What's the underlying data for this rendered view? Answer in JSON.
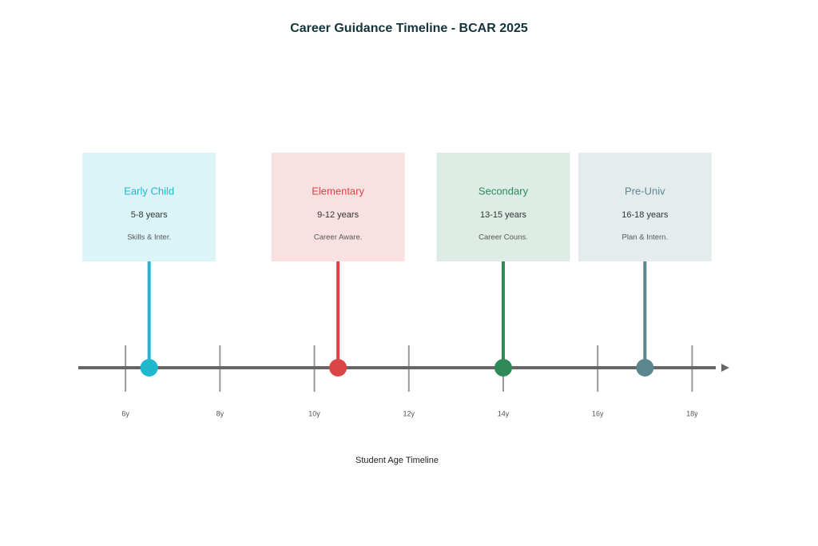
{
  "chart_data": {
    "type": "timeline",
    "title": "Career Guidance Timeline - BCAR 2025",
    "x_label": "Student Age Timeline",
    "xlim": [
      5,
      18.5
    ],
    "xticks": [
      {
        "value": 6,
        "label": "6y"
      },
      {
        "value": 8,
        "label": "8y"
      },
      {
        "value": 10,
        "label": "10y"
      },
      {
        "value": 12,
        "label": "12y"
      },
      {
        "value": 14,
        "label": "14y"
      },
      {
        "value": 16,
        "label": "16y"
      },
      {
        "value": 18,
        "label": "18y"
      }
    ],
    "events": [
      {
        "name": "Early Child",
        "period": "5-8 years",
        "note": "Skills & Inter.",
        "x": 6.5,
        "color": "#1fb8cd"
      },
      {
        "name": "Elementary",
        "period": "9-12 years",
        "note": "Career Aware.",
        "x": 10.5,
        "color": "#db4545"
      },
      {
        "name": "Secondary",
        "period": "13-15 years",
        "note": "Career Couns.",
        "x": 14,
        "color": "#2e8b57"
      },
      {
        "name": "Pre-Univ",
        "period": "16-18 years",
        "note": "Plan & Intern.",
        "x": 17,
        "color": "#5d878f"
      }
    ]
  }
}
